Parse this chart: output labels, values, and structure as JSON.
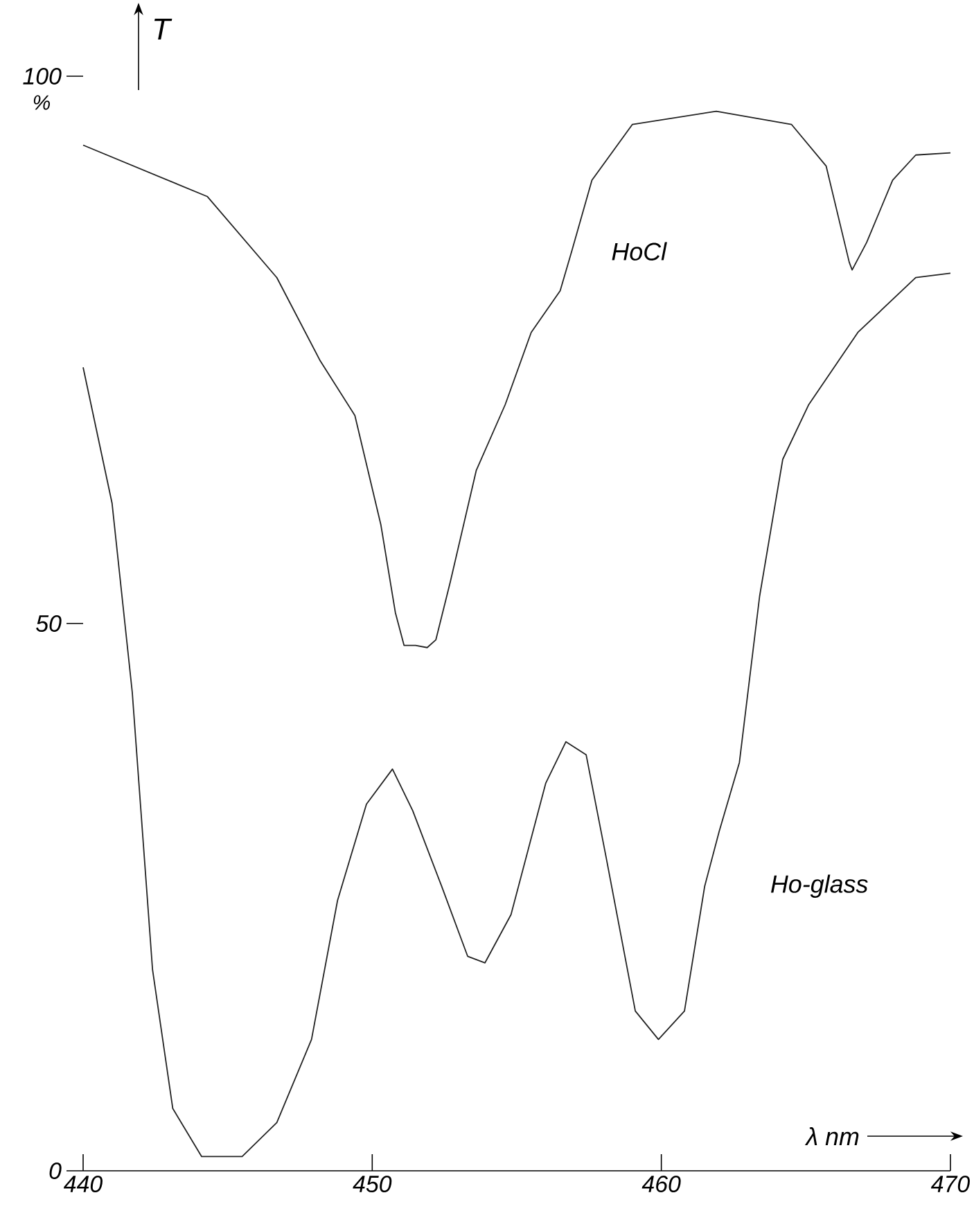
{
  "chart_data": {
    "type": "line",
    "xlabel": "λ nm",
    "ylabel": "T",
    "annotations": [
      "%"
    ],
    "xlim": [
      440,
      470
    ],
    "ylim": [
      0,
      100
    ],
    "xticks": [
      440,
      450,
      460,
      470
    ],
    "yticks": [
      0,
      50,
      100
    ],
    "marker": "none",
    "line_style": "solid",
    "series": [
      {
        "name": "HoCl",
        "color": "#222222",
        "x": [
          440,
          444.3,
          446.7,
          448.2,
          449.4,
          450.3,
          450.8,
          451.1,
          451.5,
          451.9,
          452.2,
          452.7,
          453.6,
          454.6,
          455.5,
          456.5,
          456.9,
          457.6,
          459.0,
          461.9,
          464.5,
          465.7,
          466.5,
          466.6,
          467.1,
          468,
          468.8,
          470
        ],
        "values": [
          93.7,
          89,
          81.6,
          74,
          69,
          59,
          51,
          48,
          48,
          47.8,
          48.5,
          53.8,
          64,
          70,
          76.6,
          80.4,
          84,
          90.5,
          95.6,
          96.8,
          95.6,
          91.8,
          83,
          82.3,
          84.8,
          90.5,
          92.8,
          93
        ]
      },
      {
        "name": "Ho-glass",
        "color": "#222222",
        "x": [
          440,
          441,
          441.7,
          442.4,
          443.1,
          444.1,
          445.5,
          446.7,
          447.9,
          448.8,
          449.8,
          450.7,
          451.4,
          452.4,
          453.3,
          453.9,
          454.8,
          456,
          456.7,
          457.4,
          458.1,
          459.1,
          459.9,
          460.8,
          461.5,
          462,
          462.7,
          463.4,
          464.2,
          465.1,
          466.8,
          468.8,
          470
        ],
        "values": [
          73.4,
          61,
          43.7,
          18.4,
          5.7,
          1.3,
          1.3,
          4.4,
          12,
          24.7,
          33.5,
          36.7,
          32.9,
          26,
          19.6,
          19,
          23.4,
          35.4,
          39.2,
          38,
          28.5,
          14.6,
          12,
          14.6,
          26,
          31,
          37.3,
          52.5,
          65,
          70,
          76.6,
          81.6,
          82
        ]
      }
    ]
  }
}
